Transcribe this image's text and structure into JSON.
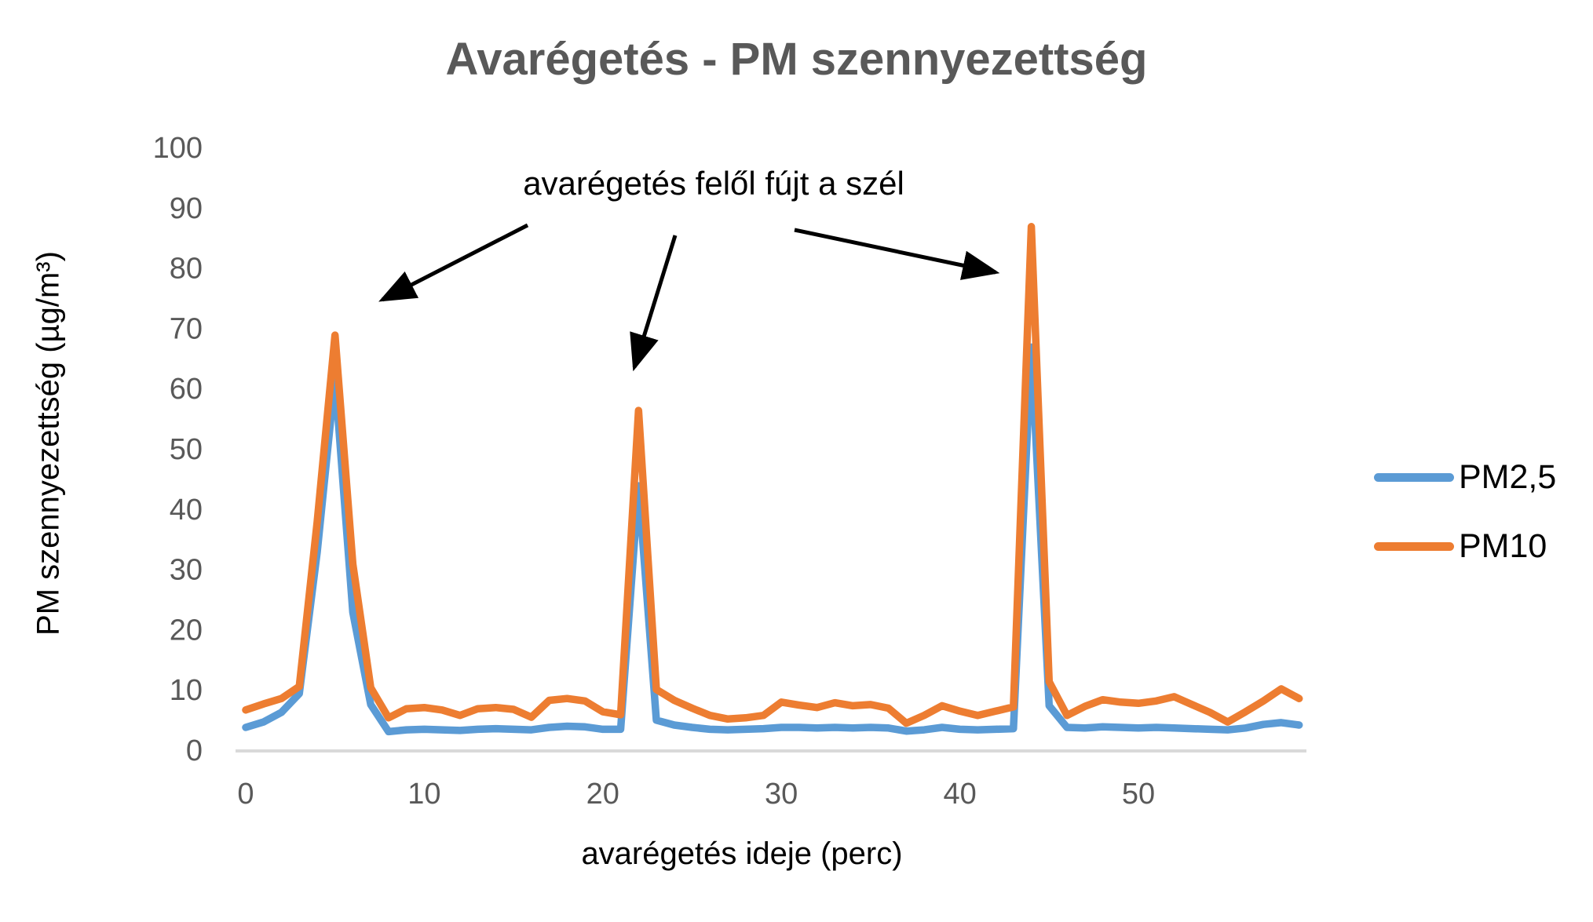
{
  "title": "Avarégetés - PM szennyezettség",
  "annotation": {
    "text": "avarégetés felől fújt a szél",
    "arrow_targets": [
      "peak-at-minute-5",
      "peak-at-minute-22",
      "peak-at-minute-44"
    ]
  },
  "legend": {
    "position": "right",
    "items": [
      {
        "label": "PM2,5",
        "color": "#5B9BD5"
      },
      {
        "label": "PM10",
        "color": "#ED7D31"
      }
    ]
  },
  "colors": {
    "pm25": "#5B9BD5",
    "pm10": "#ED7D31",
    "axis_line": "#D9D9D9",
    "tick_text": "#595959",
    "title_text": "#595959",
    "annotation_text": "#000000"
  },
  "chart_data": {
    "type": "line",
    "title": "Avarégetés - PM szennyezettség",
    "xlabel": "avarégetés ideje (perc)",
    "ylabel": "PM szennyezettség (µg/m³)",
    "xlim": [
      0,
      59
    ],
    "ylim": [
      0,
      100
    ],
    "x_ticks": [
      0,
      10,
      20,
      30,
      40,
      50
    ],
    "y_ticks": [
      0,
      10,
      20,
      30,
      40,
      50,
      60,
      70,
      80,
      90,
      100
    ],
    "grid": false,
    "legend_position": "right",
    "x": [
      0,
      1,
      2,
      3,
      4,
      5,
      6,
      7,
      8,
      9,
      10,
      11,
      12,
      13,
      14,
      15,
      16,
      17,
      18,
      19,
      20,
      21,
      22,
      23,
      24,
      25,
      26,
      27,
      28,
      29,
      30,
      31,
      32,
      33,
      34,
      35,
      36,
      37,
      38,
      39,
      40,
      41,
      42,
      43,
      44,
      45,
      46,
      47,
      48,
      49,
      50,
      51,
      52,
      53,
      54,
      55,
      56,
      57,
      58,
      59
    ],
    "series": [
      {
        "name": "PM2,5",
        "color": "#5B9BD5",
        "values": [
          3.9,
          4.8,
          6.4,
          9.5,
          33,
          62,
          23,
          7.7,
          3.2,
          3.5,
          3.6,
          3.5,
          3.4,
          3.6,
          3.7,
          3.6,
          3.5,
          3.9,
          4.1,
          4.0,
          3.6,
          3.6,
          44,
          5.1,
          4.3,
          3.9,
          3.6,
          3.5,
          3.6,
          3.7,
          3.9,
          3.9,
          3.8,
          3.9,
          3.8,
          3.9,
          3.8,
          3.3,
          3.5,
          3.9,
          3.6,
          3.5,
          3.6,
          3.7,
          67,
          7.5,
          3.9,
          3.8,
          4.0,
          3.9,
          3.8,
          3.9,
          3.8,
          3.7,
          3.6,
          3.5,
          3.8,
          4.4,
          4.7,
          4.3
        ]
      },
      {
        "name": "PM10",
        "color": "#ED7D31",
        "values": [
          6.8,
          7.8,
          8.7,
          10.7,
          38,
          69,
          31,
          10.5,
          5.5,
          7.0,
          7.2,
          6.8,
          5.9,
          7.0,
          7.2,
          6.9,
          5.6,
          8.4,
          8.7,
          8.3,
          6.5,
          6.0,
          56.5,
          10.2,
          8.4,
          7.1,
          5.9,
          5.3,
          5.5,
          5.9,
          8.1,
          7.6,
          7.2,
          8.0,
          7.5,
          7.7,
          7.1,
          4.6,
          5.9,
          7.5,
          6.6,
          5.9,
          6.6,
          7.3,
          87,
          11.5,
          5.9,
          7.4,
          8.5,
          8.1,
          7.9,
          8.3,
          9.0,
          7.7,
          6.4,
          4.8,
          6.5,
          8.3,
          10.3,
          8.7
        ]
      }
    ]
  }
}
